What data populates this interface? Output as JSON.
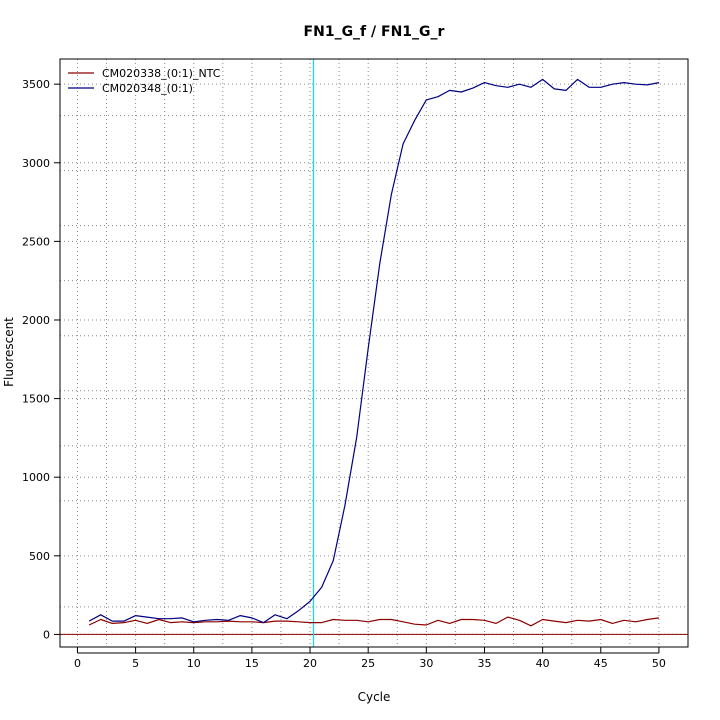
{
  "chart_data": {
    "type": "line",
    "title": "FN1_G_f / FN1_G_r",
    "xlabel": "Cycle",
    "ylabel": "Fluorescent",
    "xlim": [
      -1.5,
      52.5
    ],
    "ylim": [
      -80,
      3660
    ],
    "xticks": [
      0,
      5,
      10,
      15,
      20,
      25,
      30,
      35,
      40,
      45,
      50
    ],
    "yticks": [
      0,
      500,
      1000,
      1500,
      2000,
      2500,
      3000,
      3500
    ],
    "x_gridlines": [
      0,
      2.5,
      5,
      7.5,
      10,
      12.5,
      15,
      17.5,
      20,
      22.5,
      25,
      27.5,
      30,
      32.5,
      35,
      37.5,
      40,
      42.5,
      45,
      47.5,
      50
    ],
    "y_gridlines": [
      0,
      175,
      500,
      850,
      1000,
      1200,
      1500,
      1550,
      1900,
      2000,
      2250,
      2500,
      2600,
      2950,
      3000,
      3300,
      3500
    ],
    "grid": true,
    "legend_position": "top-left",
    "threshold": {
      "cycle": 20.3,
      "color": "#00e5ee"
    },
    "baseline": {
      "value": 0,
      "color": "#8b0000"
    },
    "x": [
      1,
      2,
      3,
      4,
      5,
      6,
      7,
      8,
      9,
      10,
      11,
      12,
      13,
      14,
      15,
      16,
      17,
      18,
      19,
      20,
      21,
      22,
      23,
      24,
      25,
      26,
      27,
      28,
      29,
      30,
      31,
      32,
      33,
      34,
      35,
      36,
      37,
      38,
      39,
      40,
      41,
      42,
      43,
      44,
      45,
      46,
      47,
      48,
      49,
      50
    ],
    "series": [
      {
        "name": "CM020338_(0:1)_NTC",
        "color": "#8b0000",
        "values": [
          60,
          95,
          70,
          75,
          90,
          70,
          95,
          75,
          80,
          75,
          80,
          80,
          85,
          80,
          80,
          75,
          85,
          85,
          80,
          75,
          75,
          95,
          90,
          90,
          80,
          95,
          95,
          80,
          65,
          60,
          90,
          70,
          95,
          95,
          90,
          70,
          110,
          90,
          55,
          95,
          85,
          75,
          90,
          85,
          95,
          70,
          90,
          80,
          95,
          105
        ]
      },
      {
        "name": "CM020348_(0:1)",
        "color": "#000080",
        "values": [
          85,
          125,
          85,
          85,
          120,
          110,
          100,
          100,
          105,
          80,
          90,
          95,
          90,
          120,
          105,
          75,
          125,
          100,
          150,
          210,
          300,
          470,
          820,
          1250,
          1820,
          2360,
          2800,
          3120,
          3270,
          3400,
          3420,
          3460,
          3450,
          3475,
          3510,
          3490,
          3480,
          3500,
          3480,
          3530,
          3470,
          3460,
          3530,
          3480,
          3480,
          3500,
          3510,
          3500,
          3495,
          3510
        ]
      }
    ]
  }
}
